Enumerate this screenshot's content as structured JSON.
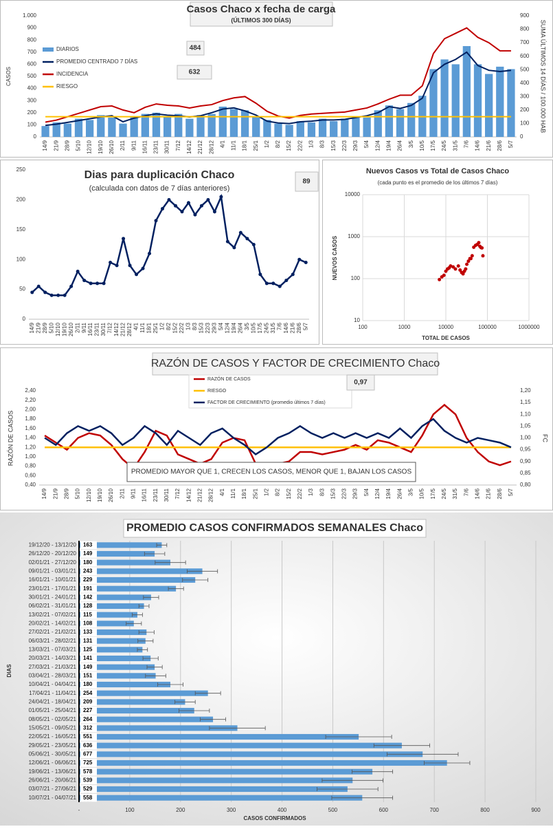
{
  "chart_data": [
    {
      "type": "combo",
      "title": "Casos Chaco x fecha de carga",
      "subtitle": "(ÚLTIMOS 300 DÍAS)",
      "y_label": "CASOS",
      "y2_label": "SUMA ÚLTIMOS 14 DÍAS / 100.000 HAB",
      "annotations": [
        "484",
        "632"
      ],
      "categories": [
        "14/9",
        "21/9",
        "28/9",
        "5/10",
        "12/10",
        "19/10",
        "26/10",
        "2/11",
        "9/11",
        "16/11",
        "23/11",
        "30/11",
        "7/12",
        "14/12",
        "21/12",
        "28/12",
        "4/1",
        "11/1",
        "18/1",
        "25/1",
        "1/2",
        "8/2",
        "15/2",
        "22/2",
        "1/3",
        "8/3",
        "15/3",
        "22/3",
        "29/3",
        "5/4",
        "12/4",
        "19/4",
        "26/4",
        "3/5",
        "10/5",
        "17/5",
        "24/5",
        "31/5",
        "7/6",
        "14/6",
        "21/6",
        "28/6",
        "5/7"
      ],
      "series": [
        {
          "name": "DIARIOS",
          "type": "bar",
          "color": "#5b9bd5",
          "values": [
            90,
            120,
            110,
            150,
            140,
            180,
            160,
            110,
            170,
            190,
            200,
            170,
            190,
            150,
            180,
            190,
            250,
            230,
            220,
            170,
            140,
            110,
            100,
            130,
            120,
            150,
            130,
            150,
            170,
            160,
            220,
            260,
            230,
            280,
            340,
            560,
            640,
            600,
            750,
            600,
            520,
            580,
            560
          ]
        },
        {
          "name": "PROMEDIO CENTRADO 7 DÍAS",
          "type": "line",
          "color": "#002060",
          "values": [
            95,
            105,
            120,
            135,
            150,
            165,
            175,
            125,
            155,
            175,
            190,
            180,
            175,
            165,
            175,
            200,
            230,
            240,
            215,
            180,
            130,
            115,
            110,
            125,
            130,
            140,
            140,
            145,
            160,
            175,
            200,
            250,
            235,
            260,
            320,
            530,
            600,
            640,
            700,
            590,
            550,
            540,
            550
          ]
        },
        {
          "name": "INCIDENCIA",
          "type": "line",
          "color": "#c00000",
          "axis": "y2",
          "values": [
            110,
            125,
            150,
            175,
            200,
            225,
            230,
            200,
            180,
            220,
            245,
            235,
            230,
            215,
            230,
            240,
            270,
            290,
            300,
            250,
            190,
            155,
            140,
            160,
            170,
            175,
            180,
            185,
            200,
            215,
            245,
            280,
            310,
            310,
            380,
            620,
            730,
            770,
            810,
            740,
            700,
            640,
            640
          ]
        },
        {
          "name": "RIESGO",
          "type": "line",
          "color": "#ffc000",
          "axis": "y2",
          "values": [
            150,
            150,
            150,
            150,
            150,
            150,
            150,
            150,
            150,
            150,
            150,
            150,
            150,
            150,
            150,
            150,
            150,
            150,
            150,
            150,
            150,
            150,
            150,
            150,
            150,
            150,
            150,
            150,
            150,
            150,
            150,
            150,
            150,
            150,
            150,
            150,
            150,
            150,
            150,
            150,
            150,
            150,
            150
          ]
        }
      ],
      "ylim": [
        0,
        1000
      ],
      "yticks": [
        0,
        100,
        200,
        300,
        400,
        500,
        600,
        700,
        800,
        900,
        {
          "value": 1000,
          "label": "1.000"
        }
      ],
      "y2lim": [
        0,
        900
      ],
      "y2ticks": [
        0,
        100,
        200,
        300,
        400,
        500,
        600,
        700,
        800,
        900
      ]
    },
    {
      "type": "line",
      "title": "Dias para duplicación Chaco",
      "subtitle": "(calculada con datos de 7 días anteriores)",
      "annotations": [
        "89"
      ],
      "markers": true,
      "categories": [
        "14/9",
        "21/9",
        "28/9",
        "5/10",
        "12/10",
        "19/10",
        "26/10",
        "2/11",
        "9/11",
        "16/11",
        "23/11",
        "30/11",
        "7/12",
        "14/12",
        "21/12",
        "28/12",
        "4/1",
        "11/1",
        "18/1",
        "25/1",
        "1/2",
        "8/2",
        "15/2",
        "22/2",
        "1/3",
        "8/3",
        "15/3",
        "22/3",
        "29/3",
        "5/4",
        "12/4",
        "19/4",
        "26/4",
        "3/5",
        "10/5",
        "17/5",
        "24/5",
        "31/5",
        "7/6",
        "14/6",
        "21/6",
        "28/6",
        "5/7"
      ],
      "series": [
        {
          "type": "line",
          "color": "#002060",
          "values": [
            45,
            55,
            45,
            40,
            40,
            40,
            55,
            80,
            65,
            60,
            60,
            60,
            95,
            90,
            135,
            90,
            75,
            85,
            110,
            165,
            185,
            200,
            190,
            180,
            195,
            175,
            190,
            200,
            180,
            205,
            130,
            120,
            145,
            135,
            125,
            75,
            60,
            60,
            55,
            65,
            75,
            100,
            95
          ]
        }
      ],
      "ylim": [
        0,
        250
      ],
      "yticks": [
        0,
        50,
        100,
        150,
        200,
        250
      ]
    },
    {
      "type": "scatter",
      "title": "Nuevos Casos vs Total de Casos Chaco",
      "subtitle": "(cada punto es el promedio de los últimos 7 días)",
      "x_label": "TOTAL DE CASOS",
      "y_label": "NUEVOS CASOS",
      "color": "#c00000",
      "log_x": true,
      "log_y": true,
      "grid": true,
      "x": [
        7000,
        8000,
        9000,
        10000,
        11000,
        12000,
        13000,
        15000,
        17000,
        20000,
        22000,
        24000,
        26000,
        28000,
        30000,
        32000,
        35000,
        38000,
        40000,
        43000,
        47000,
        52000,
        57000,
        62000,
        66000,
        70000,
        74000,
        78000
      ],
      "values": [
        95,
        110,
        120,
        150,
        170,
        180,
        200,
        190,
        170,
        200,
        160,
        140,
        130,
        150,
        170,
        220,
        260,
        300,
        300,
        350,
        560,
        620,
        650,
        720,
        590,
        550,
        540,
        350
      ],
      "xlim": [
        100,
        1000000
      ],
      "xticks": [
        100,
        1000,
        10000,
        100000,
        1000000
      ],
      "ylim": [
        10,
        10000
      ],
      "yticks": [
        10,
        100,
        1000,
        10000
      ]
    },
    {
      "type": "line",
      "title": "RAZÓN DE CASOS Y FACTOR DE CRECIMIENTO Chaco",
      "y_label": "RAZÓN DE CASOS",
      "y2_label": "FC",
      "annotations": [
        "0,97"
      ],
      "note": "PROMEDIO MAYOR QUE 1, CRECEN LOS CASOS, MENOR QUE 1, BAJAN LOS CASOS",
      "categories": [
        "14/9",
        "21/9",
        "28/9",
        "5/10",
        "12/10",
        "19/10",
        "26/10",
        "2/11",
        "9/11",
        "16/11",
        "23/11",
        "30/11",
        "7/12",
        "14/12",
        "21/12",
        "28/12",
        "4/1",
        "11/1",
        "18/1",
        "25/1",
        "1/2",
        "8/2",
        "15/2",
        "22/2",
        "1/3",
        "8/3",
        "15/3",
        "22/3",
        "29/3",
        "5/4",
        "12/4",
        "19/4",
        "26/4",
        "3/5",
        "10/5",
        "17/5",
        "24/5",
        "31/5",
        "7/6",
        "14/6",
        "21/6",
        "28/6",
        "5/7"
      ],
      "series": [
        {
          "name": "RAZÓN DE CASOS",
          "type": "line",
          "color": "#c00000",
          "values": [
            1.45,
            1.3,
            1.15,
            1.4,
            1.5,
            1.45,
            1.25,
            0.95,
            0.75,
            1.1,
            1.55,
            1.45,
            1.05,
            0.95,
            0.85,
            0.95,
            1.3,
            1.4,
            1.35,
            0.85,
            0.8,
            0.85,
            0.9,
            1.1,
            1.1,
            1.05,
            1.1,
            1.15,
            1.25,
            1.15,
            1.35,
            1.3,
            1.2,
            1.1,
            1.45,
            1.9,
            2.1,
            1.9,
            1.4,
            1.1,
            0.9,
            0.82,
            0.9
          ]
        },
        {
          "name": "RIESGO",
          "type": "line",
          "color": "#ffc000",
          "values": [
            1.2,
            1.2,
            1.2,
            1.2,
            1.2,
            1.2,
            1.2,
            1.2,
            1.2,
            1.2,
            1.2,
            1.2,
            1.2,
            1.2,
            1.2,
            1.2,
            1.2,
            1.2,
            1.2,
            1.2,
            1.2,
            1.2,
            1.2,
            1.2,
            1.2,
            1.2,
            1.2,
            1.2,
            1.2,
            1.2,
            1.2,
            1.2,
            1.2,
            1.2,
            1.2,
            1.2,
            1.2,
            1.2,
            1.2,
            1.2,
            1.2,
            1.2,
            1.2
          ]
        },
        {
          "name": "FACTOR DE CRECIMIENTO (promedio últimos 7 días)",
          "type": "line",
          "color": "#002060",
          "axis": "y2",
          "values": [
            1.0,
            0.97,
            1.02,
            1.05,
            1.03,
            1.05,
            1.02,
            0.97,
            1.0,
            1.05,
            1.02,
            0.97,
            1.03,
            1.0,
            0.97,
            1.02,
            1.04,
            1.0,
            0.97,
            0.93,
            0.96,
            1.0,
            1.02,
            1.05,
            1.02,
            1.0,
            1.02,
            1.0,
            1.02,
            1.0,
            1.02,
            1.0,
            1.04,
            1.0,
            1.05,
            1.08,
            1.03,
            1.0,
            0.98,
            1.0,
            0.99,
            0.98,
            0.96
          ]
        }
      ],
      "ylim": [
        0.4,
        2.4
      ],
      "yticks": [
        {
          "value": 0.4,
          "label": "0,40"
        },
        {
          "value": 0.6,
          "label": "0,60"
        },
        {
          "value": 0.8,
          "label": "0,80"
        },
        {
          "value": 1.0,
          "label": "1,00"
        },
        {
          "value": 1.2,
          "label": "1,20"
        },
        {
          "value": 1.4,
          "label": "1,40"
        },
        {
          "value": 1.6,
          "label": "1,60"
        },
        {
          "value": 1.8,
          "label": "1,80"
        },
        {
          "value": 2.0,
          "label": "2,00"
        },
        {
          "value": 2.2,
          "label": "2,20"
        },
        {
          "value": 2.4,
          "label": "2,40"
        }
      ],
      "y2lim": [
        0.8,
        1.2
      ],
      "y2ticks": [
        {
          "value": 0.8,
          "label": "0,80"
        },
        {
          "value": 0.85,
          "label": "0,85"
        },
        {
          "value": 0.9,
          "label": "0,90"
        },
        {
          "value": 0.95,
          "label": "0,95"
        },
        {
          "value": 1.0,
          "label": "1,00"
        },
        {
          "value": 1.05,
          "label": "1,05"
        },
        {
          "value": 1.1,
          "label": "1,10"
        },
        {
          "value": 1.15,
          "label": "1,15"
        },
        {
          "value": 1.2,
          "label": "1,20"
        }
      ]
    },
    {
      "type": "hbar",
      "title": "PROMEDIO CASOS CONFIRMADOS SEMANALES Chaco",
      "y_label": "DIAS",
      "x_label": "CASOS CONFIRMADOS",
      "color": "#5b9bd5",
      "grid": true,
      "categories": [
        "19/12/20 - 13/12/20",
        "26/12/20 - 20/12/20",
        "02/01/21 - 27/12/20",
        "09/01/21 - 03/01/21",
        "16/01/21 - 10/01/21",
        "23/01/21 - 17/01/21",
        "30/01/21 - 24/01/21",
        "06/02/21 - 31/01/21",
        "13/02/21 - 07/02/21",
        "20/02/21 - 14/02/21",
        "27/02/21 - 21/02/21",
        "06/03/21 - 28/02/21",
        "13/03/21 - 07/03/21",
        "20/03/21 - 14/03/21",
        "27/03/21 - 21/03/21",
        "03/04/21 - 28/03/21",
        "10/04/21 - 04/04/21",
        "17/04/21 - 11/04/21",
        "24/04/21 - 18/04/21",
        "01/05/21 - 25/04/21",
        "08/05/21 - 02/05/21",
        "15/05/21 - 09/05/21",
        "22/05/21 - 16/05/21",
        "29/05/21 - 23/05/21",
        "05/06/21 - 30/05/21",
        "12/06/21 - 06/06/21",
        "19/06/21 - 13/06/21",
        "26/06/21 - 20/06/21",
        "03/07/21 - 27/06/21",
        "10/07/21 - 04/07/21"
      ],
      "values": [
        163,
        149,
        180,
        243,
        229,
        191,
        142,
        128,
        115,
        108,
        133,
        131,
        125,
        141,
        149,
        151,
        180,
        254,
        209,
        227,
        264,
        312,
        551,
        636,
        677,
        725,
        578,
        539,
        529,
        558
      ],
      "errors": [
        10,
        20,
        30,
        30,
        25,
        15,
        15,
        10,
        10,
        15,
        15,
        15,
        10,
        15,
        15,
        20,
        25,
        25,
        20,
        30,
        25,
        55,
        65,
        55,
        70,
        45,
        40,
        60,
        60,
        60
      ],
      "xlim": [
        0,
        900
      ],
      "xticks": [
        {
          "value": 0,
          "label": "-"
        },
        100,
        200,
        300,
        400,
        500,
        600,
        700,
        800,
        900
      ]
    }
  ]
}
